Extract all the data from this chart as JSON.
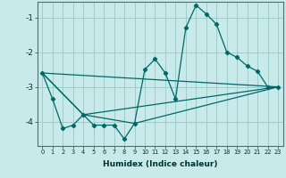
{
  "xlabel": "Humidex (Indice chaleur)",
  "bg_color": "#c8eaea",
  "grid_color": "#a0cccc",
  "line_color": "#006868",
  "xlim": [
    -0.5,
    23.5
  ],
  "ylim": [
    -4.7,
    -0.55
  ],
  "yticks": [
    -4,
    -3,
    -2,
    -1
  ],
  "xticks": [
    0,
    1,
    2,
    3,
    4,
    5,
    6,
    7,
    8,
    9,
    10,
    11,
    12,
    13,
    14,
    15,
    16,
    17,
    18,
    19,
    20,
    21,
    22,
    23
  ],
  "series1_x": [
    0,
    1,
    2,
    3,
    4,
    5,
    6,
    7,
    8,
    9,
    10,
    11,
    12,
    13,
    14,
    15,
    16,
    17,
    18,
    19,
    20,
    21,
    22,
    23
  ],
  "series1_y": [
    -2.6,
    -3.35,
    -4.2,
    -4.1,
    -3.8,
    -4.1,
    -4.1,
    -4.1,
    -4.5,
    -4.05,
    -2.5,
    -2.2,
    -2.6,
    -3.35,
    -1.3,
    -0.65,
    -0.9,
    -1.2,
    -2.0,
    -2.15,
    -2.4,
    -2.55,
    -3.0,
    -3.0
  ],
  "series2_x": [
    0,
    4,
    9,
    23
  ],
  "series2_y": [
    -2.6,
    -3.8,
    -4.05,
    -3.0
  ],
  "series3_x": [
    0,
    4,
    23
  ],
  "series3_y": [
    -2.6,
    -3.8,
    -3.0
  ],
  "series4_x": [
    0,
    23
  ],
  "series4_y": [
    -2.6,
    -3.0
  ]
}
